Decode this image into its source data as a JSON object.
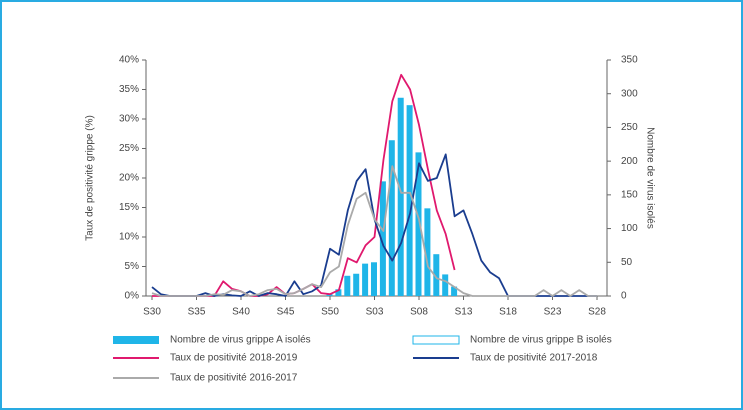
{
  "chart_data": {
    "type": "bar-line",
    "ylabel": "Taux de positivité grippe (%)",
    "y2label": "Nombre de virus isolés",
    "categories": [
      "S30",
      null,
      null,
      null,
      null,
      "S35",
      null,
      null,
      null,
      null,
      "S40",
      null,
      null,
      null,
      null,
      "S45",
      null,
      null,
      null,
      null,
      "S50",
      null,
      null,
      null,
      null,
      "S03",
      null,
      null,
      null,
      null,
      "S08",
      null,
      null,
      null,
      null,
      "S13",
      null,
      null,
      null,
      null,
      "S18",
      null,
      null,
      null,
      null,
      "S23",
      null,
      null,
      null,
      null,
      "S28"
    ],
    "ylim": [
      0,
      40
    ],
    "yticks": [
      {
        "value": 0,
        "label": "0%"
      },
      {
        "value": 5,
        "label": "5%"
      },
      {
        "value": 10,
        "label": "10%"
      },
      {
        "value": 15,
        "label": "15%"
      },
      {
        "value": 20,
        "label": "20%"
      },
      {
        "value": 25,
        "label": "25%"
      },
      {
        "value": 30,
        "label": "30%"
      },
      {
        "value": 35,
        "label": "35%"
      },
      {
        "value": 40,
        "label": "40%"
      }
    ],
    "y2lim": [
      0,
      350
    ],
    "y2ticks": [
      0,
      50,
      100,
      150,
      200,
      250,
      300,
      350
    ],
    "series": [
      {
        "name": "Nombre de virus grippe A isolés",
        "kind": "bar",
        "axis": "y2",
        "color": "#1fb5e8",
        "values": [
          0,
          0,
          0,
          0,
          0,
          0,
          0,
          0,
          0,
          0,
          0,
          0,
          0,
          0,
          0,
          0,
          0,
          0,
          0,
          0,
          3,
          10,
          30,
          33,
          48,
          50,
          170,
          231,
          294,
          283,
          213,
          130,
          62,
          32,
          14,
          0,
          0,
          0,
          0,
          0,
          0,
          0,
          0,
          0,
          0,
          0,
          0,
          0,
          0,
          0,
          0
        ]
      },
      {
        "name": "Nombre de virus grippe B isolés",
        "kind": "bar-outline",
        "axis": "y2",
        "color": "#1fb5e8",
        "values": [
          0,
          0,
          0,
          0,
          0,
          0,
          0,
          0,
          0,
          0,
          0,
          0,
          0,
          0,
          0,
          0,
          0,
          0,
          0,
          0,
          0,
          0,
          0,
          0,
          0,
          0,
          0,
          0,
          0,
          0,
          0,
          0,
          0,
          0,
          0,
          0,
          0,
          0,
          0,
          0,
          0,
          0,
          0,
          0,
          0,
          0,
          0,
          0,
          0,
          0,
          0
        ]
      },
      {
        "name": "Taux de positivité 2018-2019",
        "kind": "line",
        "color": "#e0196e",
        "values": [
          0,
          0,
          0,
          0,
          0,
          0,
          0,
          0,
          2.5,
          1.2,
          0.8,
          0,
          0,
          0.3,
          1.5,
          0.3,
          0.5,
          1.2,
          2,
          0.5,
          0.3,
          1,
          6.4,
          5.7,
          8.6,
          10,
          23,
          33,
          37.5,
          35,
          29,
          21.5,
          14.5,
          10.5,
          4.4,
          null,
          null,
          null,
          null,
          null,
          null,
          null,
          null,
          null,
          null,
          null,
          null,
          null,
          null,
          null,
          null
        ]
      },
      {
        "name": "Taux de positivité 2017-2018",
        "kind": "line",
        "color": "#1a3d8f",
        "values": [
          1.5,
          0.3,
          0,
          0,
          0,
          0,
          0.5,
          0,
          0.3,
          0.1,
          0,
          0.8,
          0,
          0.5,
          0.3,
          0,
          2.5,
          0.3,
          0.8,
          1.8,
          8,
          7,
          14.5,
          19.5,
          21.5,
          13,
          8.5,
          6,
          9,
          14,
          22.5,
          19.5,
          20,
          24,
          13.5,
          14.5,
          10.5,
          6,
          4,
          3,
          0,
          0,
          0,
          0,
          0,
          0,
          0,
          0,
          0,
          0,
          0
        ]
      },
      {
        "name": "Taux de positivité 2016-2017",
        "kind": "line",
        "color": "#aaaaaa",
        "values": [
          0.5,
          0,
          0,
          0,
          0,
          0,
          0,
          0.3,
          0.2,
          1,
          0.8,
          0,
          0.3,
          1,
          1.2,
          0.3,
          0.5,
          1.2,
          2,
          1.5,
          4,
          5,
          12,
          16.5,
          17.5,
          13,
          11,
          22,
          17.5,
          17.5,
          13,
          5,
          3,
          2.5,
          1.5,
          0.5,
          0,
          0,
          0,
          0,
          0,
          0,
          0,
          0,
          1,
          0,
          1,
          0,
          1,
          0,
          0
        ]
      }
    ]
  }
}
